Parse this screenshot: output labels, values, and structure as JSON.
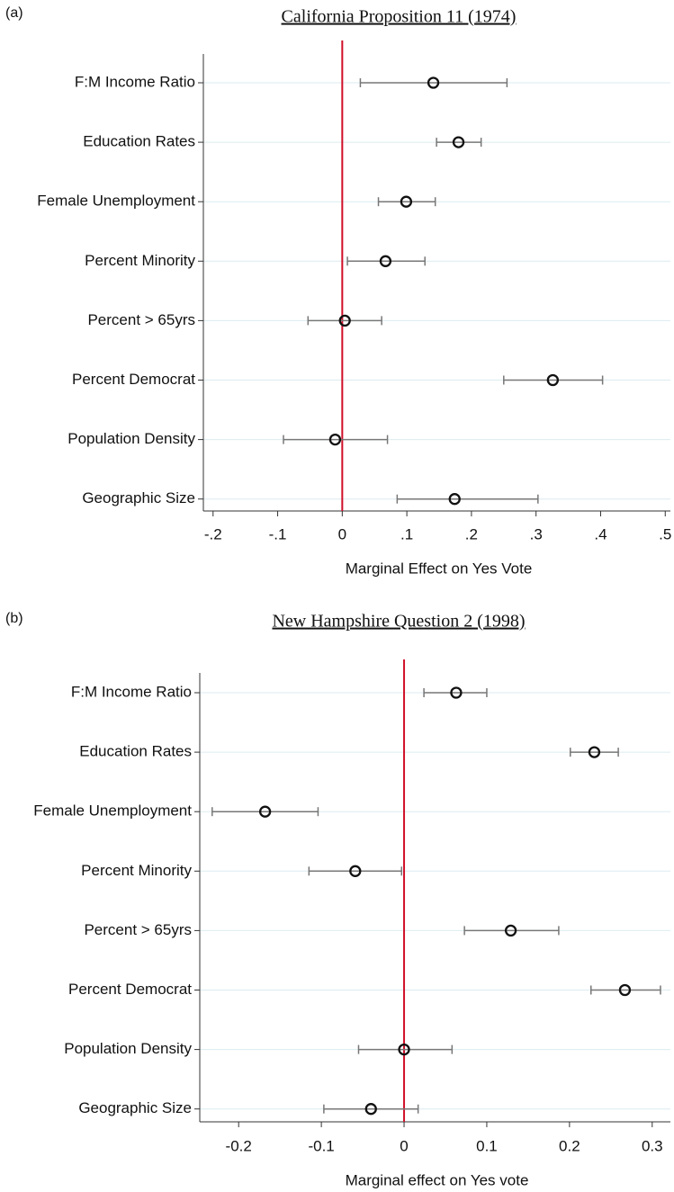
{
  "chart_data": [
    {
      "type": "dot-whisker",
      "panel_label": "(a)",
      "title": "California Proposition 11 (1974)",
      "x_label": "Marginal Effect on  Yes  Vote",
      "categories": [
        "F:M Income Ratio",
        "Education Rates",
        "Female Unemployment",
        "Percent Minority",
        "Percent > 65yrs",
        "Percent Democrat",
        "Population Density",
        "Geographic Size"
      ],
      "values": [
        0.141,
        0.18,
        0.099,
        0.067,
        0.004,
        0.326,
        -0.011,
        0.174
      ],
      "lower": [
        0.028,
        0.146,
        0.056,
        0.008,
        -0.053,
        0.25,
        -0.091,
        0.085
      ],
      "upper": [
        0.255,
        0.215,
        0.144,
        0.128,
        0.061,
        0.403,
        0.07,
        0.303
      ],
      "xlim": [
        -0.215,
        0.508
      ],
      "xticks": [
        {
          "value": -0.2,
          "label": "-.2"
        },
        {
          "value": -0.1,
          "label": "-.1"
        },
        0,
        {
          "value": 0.1,
          "label": ".1"
        },
        {
          "value": 0.2,
          "label": ".2"
        },
        {
          "value": 0.3,
          "label": ".3"
        },
        {
          "value": 0.4,
          "label": ".4"
        },
        {
          "value": 0.5,
          "label": ".5"
        }
      ],
      "ref_line": 0,
      "ref_color": "#d0102a",
      "marker_color": "#111111",
      "whisker_color": "#777777",
      "grid": true,
      "grid_color": "#dcebf0"
    },
    {
      "type": "dot-whisker",
      "panel_label": "(b)",
      "title": "New Hampshire Question 2 (1998)",
      "x_label": "Marginal effect on Yes vote",
      "categories": [
        "F:M Income Ratio",
        "Education Rates",
        "Female Unemployment",
        "Percent Minority",
        "Percent > 65yrs",
        "Percent Democrat",
        "Population Density",
        "Geographic Size"
      ],
      "values": [
        0.063,
        0.23,
        -0.168,
        -0.059,
        0.129,
        0.267,
        0.0,
        -0.04
      ],
      "lower": [
        0.024,
        0.201,
        -0.232,
        -0.115,
        0.073,
        0.226,
        -0.055,
        -0.097
      ],
      "upper": [
        0.1,
        0.259,
        -0.104,
        -0.003,
        0.187,
        0.31,
        0.058,
        0.017
      ],
      "xlim": [
        -0.247,
        0.322
      ],
      "xticks": [
        -0.2,
        -0.1,
        0,
        0.1,
        0.2,
        0.3
      ],
      "ref_line": 0,
      "ref_color": "#d0102a",
      "marker_color": "#111111",
      "whisker_color": "#777777",
      "grid": true,
      "grid_color": "#dcebf0"
    }
  ]
}
